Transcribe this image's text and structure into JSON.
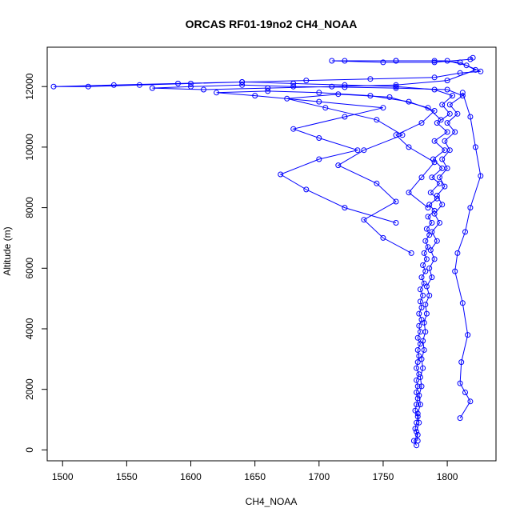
{
  "chart_data": {
    "type": "line",
    "title": "ORCAS RF01-19no2 CH4_NOAA",
    "xlabel": "CH4_NOAA",
    "ylabel": "Altitude (m)",
    "xlim": [
      1488,
      1838
    ],
    "ylim": [
      -360,
      13300
    ],
    "xticks": [
      1500,
      1550,
      1600,
      1650,
      1700,
      1750,
      1800
    ],
    "yticks": [
      0,
      2000,
      4000,
      6000,
      8000,
      10000,
      12000
    ],
    "grid": false,
    "marker": "open-circle",
    "series_color": "#0000ff",
    "series": [
      {
        "points": [
          [
            1776,
            150
          ],
          [
            1774,
            300
          ],
          [
            1777,
            500
          ],
          [
            1775,
            700
          ],
          [
            1776,
            900
          ],
          [
            1777,
            1100
          ],
          [
            1775,
            1300
          ],
          [
            1776,
            1500
          ],
          [
            1777,
            1700
          ],
          [
            1776,
            1900
          ],
          [
            1777,
            2100
          ],
          [
            1776,
            2300
          ],
          [
            1778,
            2500
          ],
          [
            1776,
            2700
          ],
          [
            1777,
            2900
          ],
          [
            1778,
            3100
          ],
          [
            1777,
            3300
          ],
          [
            1779,
            3500
          ],
          [
            1777,
            3700
          ],
          [
            1779,
            3900
          ],
          [
            1778,
            4100
          ],
          [
            1780,
            4300
          ],
          [
            1778,
            4500
          ],
          [
            1780,
            4700
          ],
          [
            1779,
            4900
          ],
          [
            1781,
            5100
          ],
          [
            1779,
            5300
          ],
          [
            1782,
            5500
          ],
          [
            1780,
            5700
          ],
          [
            1783,
            5900
          ],
          [
            1781,
            6100
          ],
          [
            1784,
            6300
          ],
          [
            1782,
            6500
          ],
          [
            1785,
            6700
          ],
          [
            1783,
            6900
          ],
          [
            1786,
            7100
          ],
          [
            1784,
            7300
          ],
          [
            1788,
            7500
          ],
          [
            1785,
            7700
          ],
          [
            1790,
            7900
          ],
          [
            1786,
            8100
          ],
          [
            1792,
            8300
          ],
          [
            1787,
            8500
          ],
          [
            1794,
            8800
          ],
          [
            1788,
            9000
          ],
          [
            1796,
            9300
          ],
          [
            1789,
            9600
          ],
          [
            1798,
            9900
          ],
          [
            1790,
            10200
          ],
          [
            1800,
            10500
          ],
          [
            1792,
            10800
          ],
          [
            1802,
            11100
          ],
          [
            1796,
            11400
          ],
          [
            1804,
            11700
          ],
          [
            1790,
            11900
          ],
          [
            1760,
            12000
          ],
          [
            1720,
            12050
          ],
          [
            1680,
            12100
          ],
          [
            1640,
            12150
          ],
          [
            1600,
            12100
          ],
          [
            1560,
            12050
          ],
          [
            1520,
            12000
          ],
          [
            1493,
            12000
          ],
          [
            1540,
            12050
          ],
          [
            1590,
            12100
          ],
          [
            1640,
            12150
          ],
          [
            1690,
            12200
          ],
          [
            1740,
            12250
          ],
          [
            1790,
            12300
          ],
          [
            1810,
            12450
          ],
          [
            1826,
            12500
          ],
          [
            1815,
            12700
          ],
          [
            1800,
            12850
          ],
          [
            1760,
            12850
          ],
          [
            1720,
            12850
          ],
          [
            1710,
            12850
          ],
          [
            1750,
            12800
          ],
          [
            1790,
            12800
          ],
          [
            1818,
            12900
          ],
          [
            1820,
            12950
          ]
        ]
      },
      {
        "points": [
          [
            1777,
            300
          ],
          [
            1776,
            600
          ],
          [
            1778,
            900
          ],
          [
            1777,
            1200
          ],
          [
            1779,
            1500
          ],
          [
            1778,
            1800
          ],
          [
            1780,
            2100
          ],
          [
            1779,
            2400
          ],
          [
            1781,
            2700
          ],
          [
            1780,
            3000
          ],
          [
            1782,
            3300
          ],
          [
            1781,
            3600
          ],
          [
            1783,
            3900
          ],
          [
            1782,
            4200
          ],
          [
            1784,
            4500
          ],
          [
            1783,
            4800
          ],
          [
            1786,
            5100
          ],
          [
            1784,
            5400
          ],
          [
            1788,
            5700
          ],
          [
            1786,
            6000
          ],
          [
            1790,
            6300
          ],
          [
            1787,
            6600
          ],
          [
            1792,
            6900
          ],
          [
            1788,
            7200
          ],
          [
            1794,
            7500
          ],
          [
            1790,
            7800
          ],
          [
            1796,
            8100
          ],
          [
            1792,
            8400
          ],
          [
            1798,
            8700
          ],
          [
            1794,
            9000
          ],
          [
            1800,
            9300
          ],
          [
            1796,
            9600
          ],
          [
            1802,
            9900
          ],
          [
            1798,
            10200
          ],
          [
            1806,
            10500
          ],
          [
            1800,
            10800
          ],
          [
            1808,
            11100
          ],
          [
            1802,
            11400
          ],
          [
            1812,
            11700
          ],
          [
            1800,
            11900
          ],
          [
            1760,
            11950
          ],
          [
            1720,
            11980
          ],
          [
            1680,
            12000
          ],
          [
            1640,
            12050
          ],
          [
            1600,
            12000
          ],
          [
            1570,
            11950
          ],
          [
            1610,
            11900
          ],
          [
            1660,
            11950
          ],
          [
            1710,
            12000
          ],
          [
            1760,
            12050
          ],
          [
            1800,
            12200
          ],
          [
            1822,
            12550
          ],
          [
            1810,
            12800
          ],
          [
            1790,
            12850
          ],
          [
            1760,
            12850
          ]
        ]
      },
      {
        "points": [
          [
            1810,
            1050
          ],
          [
            1818,
            1600
          ],
          [
            1814,
            1900
          ],
          [
            1810,
            2200
          ],
          [
            1811,
            2900
          ],
          [
            1816,
            3800
          ],
          [
            1812,
            4850
          ],
          [
            1806,
            5900
          ],
          [
            1808,
            6500
          ],
          [
            1814,
            7200
          ],
          [
            1818,
            8000
          ],
          [
            1826,
            9050
          ],
          [
            1822,
            10000
          ],
          [
            1818,
            11000
          ],
          [
            1812,
            11800
          ]
        ]
      },
      {
        "points": [
          [
            1760,
            7500
          ],
          [
            1720,
            8000
          ],
          [
            1690,
            8600
          ],
          [
            1670,
            9100
          ],
          [
            1700,
            9600
          ],
          [
            1730,
            9900
          ],
          [
            1700,
            10300
          ],
          [
            1680,
            10600
          ],
          [
            1720,
            11000
          ],
          [
            1750,
            11300
          ],
          [
            1700,
            11500
          ],
          [
            1650,
            11700
          ],
          [
            1620,
            11800
          ],
          [
            1660,
            11850
          ],
          [
            1700,
            11800
          ],
          [
            1740,
            11700
          ],
          [
            1770,
            11500
          ],
          [
            1790,
            11200
          ],
          [
            1780,
            10800
          ],
          [
            1760,
            10400
          ],
          [
            1770,
            10000
          ],
          [
            1790,
            9500
          ],
          [
            1780,
            9000
          ],
          [
            1770,
            8500
          ],
          [
            1785,
            8000
          ]
        ]
      },
      {
        "points": [
          [
            1772,
            6500
          ],
          [
            1750,
            7000
          ],
          [
            1735,
            7600
          ],
          [
            1760,
            8200
          ],
          [
            1745,
            8800
          ],
          [
            1715,
            9400
          ],
          [
            1735,
            9900
          ],
          [
            1765,
            10400
          ],
          [
            1745,
            10900
          ],
          [
            1705,
            11300
          ],
          [
            1675,
            11600
          ],
          [
            1715,
            11750
          ],
          [
            1755,
            11650
          ],
          [
            1785,
            11300
          ],
          [
            1795,
            10900
          ]
        ]
      }
    ]
  }
}
